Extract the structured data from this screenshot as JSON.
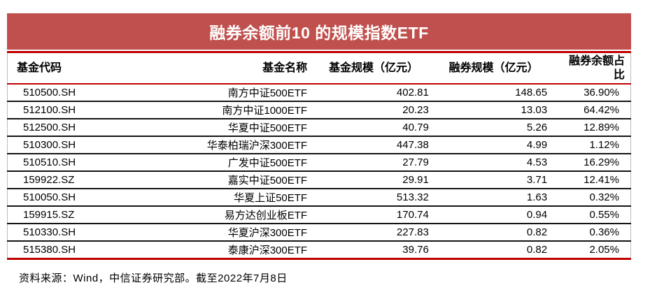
{
  "colors": {
    "banner_bg": "#C0504D",
    "rule_red": "#C00000",
    "row_divider": "#141414",
    "table_side_border": "#BDBDBD",
    "title_text": "#FFFFFF",
    "body_text": "#000000"
  },
  "chart_data": {
    "type": "table",
    "title": "融券余额前10 的规模指数ETF",
    "columns": [
      "基金代码",
      "基金名称",
      "基金规模（亿元）",
      "融券规模（亿元）",
      "融券余额占比"
    ],
    "rows": [
      [
        "510500.SH",
        "南方中证500ETF",
        "402.81",
        "148.65",
        "36.90%"
      ],
      [
        "512100.SH",
        "南方中证1000ETF",
        "20.23",
        "13.03",
        "64.42%"
      ],
      [
        "512500.SH",
        "华夏中证500ETF",
        "40.79",
        "5.26",
        "12.89%"
      ],
      [
        "510300.SH",
        "华泰柏瑞沪深300ETF",
        "447.38",
        "4.99",
        "1.12%"
      ],
      [
        "510510.SH",
        "广发中证500ETF",
        "27.79",
        "4.53",
        "16.29%"
      ],
      [
        "159922.SZ",
        "嘉实中证500ETF",
        "29.91",
        "3.71",
        "12.41%"
      ],
      [
        "510050.SH",
        "华夏上证50ETF",
        "513.32",
        "1.63",
        "0.32%"
      ],
      [
        "159915.SZ",
        "易方达创业板ETF",
        "170.74",
        "0.94",
        "0.55%"
      ],
      [
        "510330.SH",
        "华夏沪深300ETF",
        "227.83",
        "0.82",
        "0.36%"
      ],
      [
        "515380.SH",
        "泰康沪深300ETF",
        "39.76",
        "0.82",
        "2.05%"
      ]
    ],
    "source_note": "资料来源：Wind，中信证券研究部。截至2022年7月8日"
  }
}
